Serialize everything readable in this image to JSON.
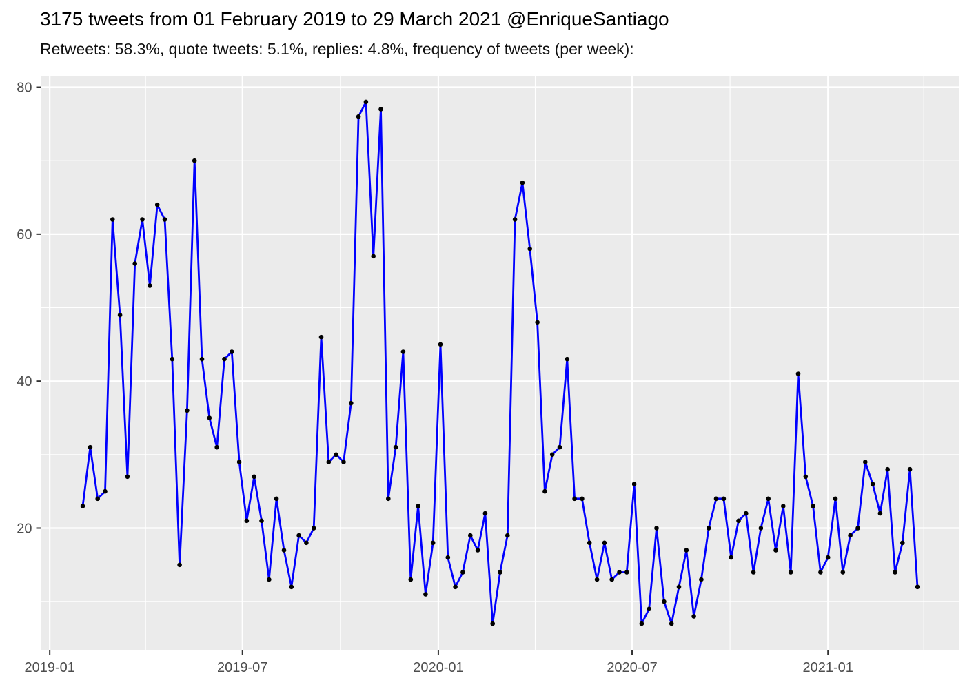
{
  "header": {
    "title": "3175 tweets from 01 February 2019 to 29 March 2021 @EnriqueSantiago",
    "subtitle": "Retweets: 58.3%, quote tweets: 5.1%, replies: 4.8%, frequency of tweets (per week):"
  },
  "style": {
    "panel_bg": "#EBEBEB",
    "grid_color": "#FFFFFF",
    "line_color": "#0000FF",
    "point_color": "#000000",
    "tick_mark_color": "#333333",
    "tick_label_color": "#4D4D4D"
  },
  "chart_data": {
    "type": "line",
    "title": "3175 tweets from 01 February 2019 to 29 March 2021 @EnriqueSantiago",
    "subtitle": "Retweets: 58.3%, quote tweets: 5.1%, replies: 4.8%, frequency of tweets (per week):",
    "xlabel": "",
    "ylabel": "",
    "legend": "none",
    "grid": "on",
    "x_axis": {
      "tick_labels": [
        "2019-01",
        "2019-07",
        "2020-01",
        "2020-07",
        "2021-01"
      ],
      "tick_dates": [
        "2019-01-01",
        "2019-07-01",
        "2020-01-01",
        "2020-07-01",
        "2021-01-01"
      ],
      "minor_dates": [
        "2019-04-01",
        "2019-10-01",
        "2020-04-01",
        "2020-10-01",
        "2021-04-01"
      ],
      "domain": [
        "2019-02-01",
        "2021-03-26"
      ],
      "expand_days": 39.2
    },
    "y_axis": {
      "tick_labels": [
        "20",
        "40",
        "60",
        "80"
      ],
      "tick_values": [
        20,
        40,
        60,
        80
      ],
      "minor_values": [
        10,
        30,
        50,
        70
      ],
      "domain": [
        7,
        78
      ],
      "expand": 3.55
    },
    "series_name": "tweets per week",
    "dates": [
      "2019-02-01",
      "2019-02-08",
      "2019-02-15",
      "2019-02-22",
      "2019-03-01",
      "2019-03-08",
      "2019-03-15",
      "2019-03-22",
      "2019-03-29",
      "2019-04-05",
      "2019-04-12",
      "2019-04-19",
      "2019-04-26",
      "2019-05-03",
      "2019-05-10",
      "2019-05-17",
      "2019-05-24",
      "2019-05-31",
      "2019-06-07",
      "2019-06-14",
      "2019-06-21",
      "2019-06-28",
      "2019-07-05",
      "2019-07-12",
      "2019-07-19",
      "2019-07-26",
      "2019-08-02",
      "2019-08-09",
      "2019-08-16",
      "2019-08-23",
      "2019-08-30",
      "2019-09-06",
      "2019-09-13",
      "2019-09-20",
      "2019-09-27",
      "2019-10-04",
      "2019-10-11",
      "2019-10-18",
      "2019-10-25",
      "2019-11-01",
      "2019-11-08",
      "2019-11-15",
      "2019-11-22",
      "2019-11-29",
      "2019-12-06",
      "2019-12-13",
      "2019-12-20",
      "2019-12-27",
      "2020-01-03",
      "2020-01-10",
      "2020-01-17",
      "2020-01-24",
      "2020-01-31",
      "2020-02-07",
      "2020-02-14",
      "2020-02-21",
      "2020-02-28",
      "2020-03-06",
      "2020-03-13",
      "2020-03-20",
      "2020-03-27",
      "2020-04-03",
      "2020-04-10",
      "2020-04-17",
      "2020-04-24",
      "2020-05-01",
      "2020-05-08",
      "2020-05-15",
      "2020-05-22",
      "2020-05-29",
      "2020-06-05",
      "2020-06-12",
      "2020-06-19",
      "2020-06-26",
      "2020-07-03",
      "2020-07-10",
      "2020-07-17",
      "2020-07-24",
      "2020-07-31",
      "2020-08-07",
      "2020-08-14",
      "2020-08-21",
      "2020-08-28",
      "2020-09-04",
      "2020-09-11",
      "2020-09-18",
      "2020-09-25",
      "2020-10-02",
      "2020-10-09",
      "2020-10-16",
      "2020-10-23",
      "2020-10-30",
      "2020-11-06",
      "2020-11-13",
      "2020-11-20",
      "2020-11-27",
      "2020-12-04",
      "2020-12-11",
      "2020-12-18",
      "2020-12-25",
      "2021-01-01",
      "2021-01-08",
      "2021-01-15",
      "2021-01-22",
      "2021-01-29",
      "2021-02-05",
      "2021-02-12",
      "2021-02-19",
      "2021-02-26",
      "2021-03-05",
      "2021-03-12",
      "2021-03-19",
      "2021-03-26"
    ],
    "values": [
      23,
      31,
      24,
      25,
      62,
      49,
      27,
      56,
      62,
      53,
      64,
      62,
      43,
      15,
      36,
      70,
      43,
      35,
      31,
      43,
      44,
      29,
      21,
      27,
      21,
      13,
      24,
      17,
      12,
      19,
      18,
      20,
      46,
      29,
      30,
      29,
      37,
      76,
      78,
      57,
      77,
      24,
      31,
      44,
      13,
      23,
      11,
      18,
      45,
      16,
      12,
      14,
      19,
      17,
      22,
      7,
      14,
      19,
      62,
      67,
      58,
      48,
      25,
      30,
      31,
      43,
      24,
      24,
      18,
      13,
      18,
      13,
      14,
      14,
      26,
      7,
      9,
      20,
      10,
      7,
      12,
      17,
      8,
      13,
      20,
      24,
      24,
      16,
      21,
      22,
      14,
      20,
      24,
      17,
      23,
      14,
      41,
      27,
      23,
      14,
      16,
      24,
      14,
      19,
      20,
      29,
      26,
      22,
      28,
      14,
      18,
      28,
      12
    ]
  }
}
